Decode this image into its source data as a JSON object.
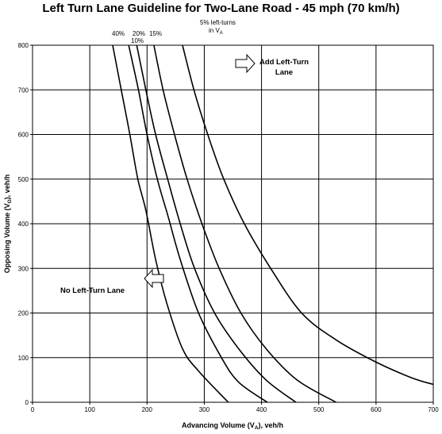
{
  "chart_data": {
    "type": "line",
    "title": "Left Turn Lane Guideline for Two-Lane Road - 45 mph (70 km/h)",
    "xlabel": "Advancing Volume (V",
    "xlabel_sub": "A",
    "xlabel_suffix": "), veh/h",
    "ylabel": "Opposing Volume (V",
    "ylabel_sub": "O",
    "ylabel_suffix": "), veh/h",
    "xlim": [
      0,
      700
    ],
    "ylim": [
      0,
      800
    ],
    "x_ticks": [
      0,
      100,
      200,
      300,
      400,
      500,
      600,
      700
    ],
    "y_ticks": [
      0,
      100,
      200,
      300,
      400,
      500,
      600,
      700,
      800
    ],
    "grid": true,
    "series": [
      {
        "name": "40%",
        "points": [
          [
            140,
            800
          ],
          [
            155,
            700
          ],
          [
            170,
            600
          ],
          [
            184,
            500
          ],
          [
            198,
            430
          ],
          [
            215,
            320
          ],
          [
            235,
            220
          ],
          [
            262,
            120
          ],
          [
            290,
            70
          ],
          [
            342,
            0
          ]
        ]
      },
      {
        "name": "20%",
        "points": [
          [
            168,
            800
          ],
          [
            185,
            700
          ],
          [
            200,
            600
          ],
          [
            218,
            500
          ],
          [
            236,
            420
          ],
          [
            258,
            320
          ],
          [
            290,
            200
          ],
          [
            330,
            100
          ],
          [
            360,
            45
          ],
          [
            410,
            0
          ]
        ]
      },
      {
        "name": "10%",
        "points": [
          [
            182,
            800
          ],
          [
            198,
            700
          ],
          [
            215,
            600
          ],
          [
            236,
            500
          ],
          [
            258,
            400
          ],
          [
            283,
            300
          ],
          [
            318,
            200
          ],
          [
            360,
            120
          ],
          [
            408,
            50
          ],
          [
            460,
            0
          ]
        ]
      },
      {
        "name": "15%",
        "points": [
          [
            212,
            800
          ],
          [
            228,
            700
          ],
          [
            248,
            600
          ],
          [
            270,
            500
          ],
          [
            296,
            400
          ],
          [
            326,
            300
          ],
          [
            364,
            200
          ],
          [
            408,
            120
          ],
          [
            462,
            50
          ],
          [
            530,
            0
          ]
        ]
      },
      {
        "name": "5% left-turns in V",
        "points": [
          [
            262,
            800
          ],
          [
            282,
            700
          ],
          [
            306,
            600
          ],
          [
            334,
            500
          ],
          [
            370,
            400
          ],
          [
            416,
            300
          ],
          [
            470,
            200
          ],
          [
            530,
            140
          ],
          [
            600,
            90
          ],
          [
            662,
            55
          ],
          [
            700,
            40
          ]
        ]
      }
    ],
    "curve_labels": {
      "p40": "40%",
      "p20": "20%",
      "p10": "10%",
      "p15": "15%",
      "p5_line1": "5% left-turns",
      "p5_line2": "in V",
      "p5_sub": "A"
    },
    "annotations": {
      "add_line1": "Add Left-Turn",
      "add_line2": "Lane",
      "no": "No Left-Turn Lane"
    }
  }
}
